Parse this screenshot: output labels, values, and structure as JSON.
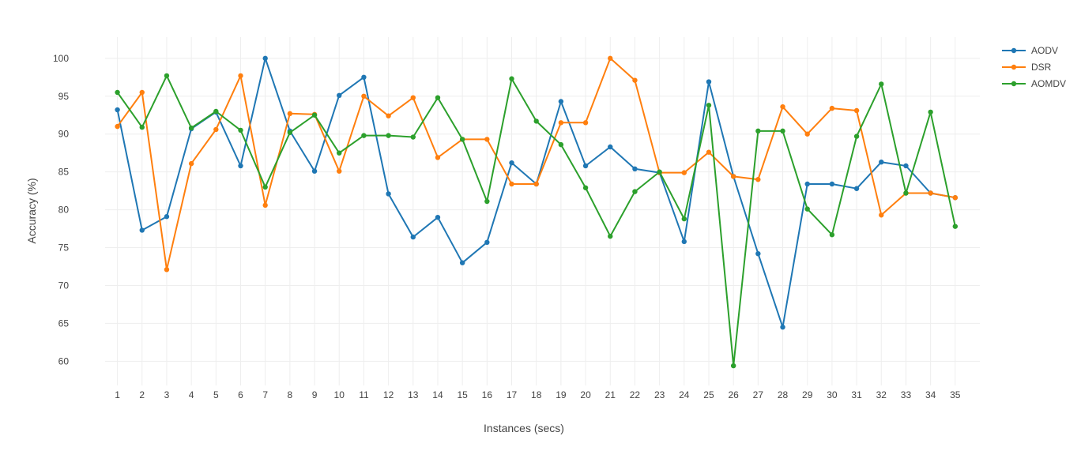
{
  "chart_data": {
    "type": "line",
    "xlabel": "Instances (secs)",
    "ylabel": "Accuracy (%)",
    "x": [
      1,
      2,
      3,
      4,
      5,
      6,
      7,
      8,
      9,
      10,
      11,
      12,
      13,
      14,
      15,
      16,
      17,
      18,
      19,
      20,
      21,
      22,
      23,
      24,
      25,
      26,
      27,
      28,
      29,
      30,
      31,
      32,
      33,
      34,
      35
    ],
    "xlim": [
      0.5,
      36
    ],
    "ylim": [
      56.8,
      102.8
    ],
    "yticks": [
      60,
      65,
      70,
      75,
      80,
      85,
      90,
      95,
      100
    ],
    "grid": true,
    "legend_position": "top-right",
    "series": [
      {
        "name": "AODV",
        "color": "#1f77b4",
        "values": [
          93.2,
          77.3,
          79.1,
          90.7,
          92.9,
          85.8,
          100,
          90.4,
          85.1,
          95.1,
          97.5,
          82.1,
          76.4,
          79.0,
          73.0,
          75.7,
          86.2,
          83.4,
          94.3,
          85.8,
          88.3,
          85.4,
          84.9,
          75.8,
          96.9,
          84.4,
          74.2,
          64.5,
          83.4,
          83.4,
          82.8,
          86.3,
          85.8,
          82.2,
          81.6
        ]
      },
      {
        "name": "DSR",
        "color": "#ff7f0e",
        "values": [
          91.0,
          95.5,
          72.1,
          86.1,
          90.6,
          97.7,
          80.6,
          92.7,
          92.6,
          85.1,
          95.0,
          92.4,
          94.8,
          86.9,
          89.3,
          89.3,
          83.4,
          83.4,
          91.5,
          91.5,
          100,
          97.1,
          84.9,
          84.9,
          87.6,
          84.4,
          84.0,
          93.6,
          90.0,
          93.4,
          93.1,
          79.3,
          82.2,
          82.2,
          81.6
        ]
      },
      {
        "name": "AOMDV",
        "color": "#2ca02c",
        "values": [
          95.5,
          90.9,
          97.7,
          90.8,
          93.0,
          90.5,
          83.0,
          90.2,
          92.5,
          87.5,
          89.8,
          89.8,
          89.6,
          94.8,
          89.3,
          81.1,
          97.3,
          91.7,
          88.6,
          82.9,
          76.5,
          82.4,
          85.0,
          78.8,
          93.8,
          59.4,
          90.4,
          90.4,
          80.1,
          76.7,
          89.7,
          96.6,
          82.2,
          92.9,
          77.8
        ]
      }
    ]
  }
}
